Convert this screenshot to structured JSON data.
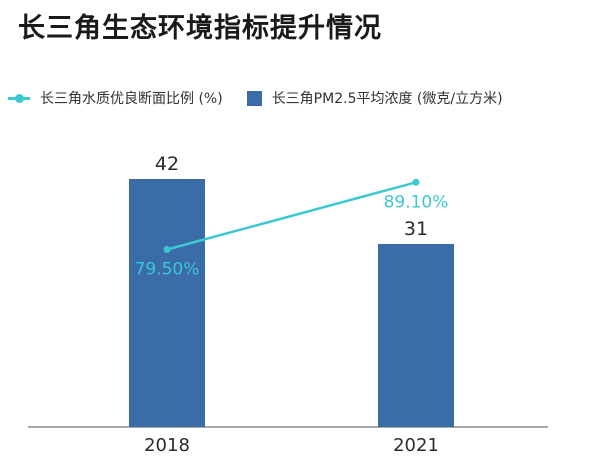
{
  "chart_data": {
    "type": "bar",
    "title": "长三角生态环境指标提升情况",
    "categories": [
      "2018",
      "2021"
    ],
    "series": [
      {
        "name": "长三角PM2.5平均浓度 (微克/立方米)",
        "type": "bar",
        "values": [
          42,
          31
        ],
        "value_labels": [
          "42",
          "31"
        ],
        "color": "#3a6ca8"
      },
      {
        "name": "长三角水质优良断面比例 (%)",
        "type": "line",
        "values": [
          79.5,
          89.1
        ],
        "value_labels": [
          "79.50%",
          "89.10%"
        ],
        "color": "#3cc8d2"
      }
    ],
    "bar_axis_max": 50,
    "line_axis_range": [
      60,
      100
    ],
    "legend": "top-left",
    "grid": false
  }
}
